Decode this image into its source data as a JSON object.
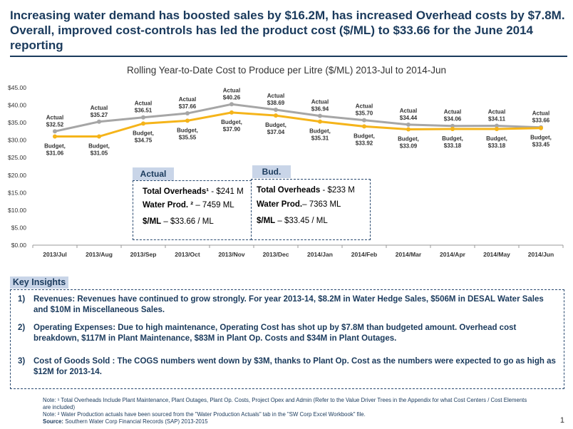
{
  "headline": "Increasing water demand has boosted sales by $16.2M, has increased Overhead costs by $7.8M. Overall, improved cost-controls has led the product cost ($/ML) to $33.66 for the June 2014 reporting",
  "chart_title": "Rolling Year-to-Date Cost to Produce per Litre ($/ML) 2013-Jul to 2014-Jun",
  "chart_data": {
    "type": "line",
    "categories": [
      "2013/Jul",
      "2013/Aug",
      "2013/Sep",
      "2013/Oct",
      "2013/Nov",
      "2013/Dec",
      "2014/Jan",
      "2014/Feb",
      "2014/Mar",
      "2014/Apr",
      "2014/May",
      "2014/Jun"
    ],
    "series": [
      {
        "name": "Actual",
        "values": [
          32.52,
          35.27,
          36.51,
          37.66,
          40.26,
          38.69,
          36.94,
          35.7,
          34.44,
          34.06,
          34.11,
          33.66
        ],
        "color": "#a6a6a6"
      },
      {
        "name": "Budget",
        "values": [
          31.06,
          31.05,
          34.75,
          35.55,
          37.9,
          37.04,
          35.31,
          33.92,
          33.09,
          33.18,
          33.18,
          33.45
        ],
        "color": "#f5b41a"
      }
    ],
    "actual_labels": [
      "$32.52",
      "$35.27",
      "$36.51",
      "$37.66",
      "$40.26",
      "$38.69",
      "$36.94",
      "$35.70",
      "$34.44",
      "$34.06",
      "$34.11",
      "$33.66"
    ],
    "budget_labels": [
      "$31.06",
      "$31.05",
      "$34.75",
      "$35.55",
      "$37.90",
      "$37.04",
      "$35.31",
      "$33.92",
      "$33.09",
      "$33.18",
      "$33.18",
      "$33.45"
    ],
    "actual_prefix": "Actual",
    "budget_prefix": "Budget,",
    "y_ticks": [
      "$0.00",
      "$5.00",
      "$10.00",
      "$15.00",
      "$20.00",
      "$25.00",
      "$30.00",
      "$35.00",
      "$40.00",
      "$45.00"
    ],
    "ylim": [
      0,
      45
    ],
    "grid": false
  },
  "actual_box": {
    "title": "Actual",
    "l1_label": "Total Overheads¹",
    "l1_value": " - $241 M",
    "l2_label": "Water Prod. ²",
    "l2_value": " – 7459 ML",
    "l3_label": "$/ML",
    "l3_value": " – $33.66 / ML"
  },
  "budget_box": {
    "title": "Bud.",
    "l1_label": "Total Overheads",
    "l1_value": " - $233 M",
    "l2_label": "Water Prod.",
    "l2_value": "– 7363 ML",
    "l3_label": "$/ML",
    "l3_value": " – $33.45 / ML"
  },
  "insights": {
    "title": "Key Insights",
    "items": [
      {
        "num": "1)",
        "text": "Revenues:  Revenues have continued to grow strongly.  For year 2013-14, $8.2M in Water Hedge Sales, $506M in DESAL Water Sales and $10M in Miscellaneous Sales."
      },
      {
        "num": "2)",
        "text": "Operating Expenses: Due to high maintenance, Operating Cost has shot up by $7.8M than budgeted amount. Overhead cost breakdown, $117M in Plant Maintenance, $83M in Plant Op. Costs and $34M in Plant Outages."
      },
      {
        "num": "3)",
        "text": "Cost of Goods Sold : The COGS numbers went down by $3M, thanks to Plant Op. Cost as the numbers were expected to go as high as $12M for 2013-14."
      }
    ]
  },
  "notes": {
    "n1": "Note: ¹ Total Overheads Include Plant Maintenance, Plant Outages, Plant Op. Costs, Project Opex and Admin (Refer to the Value Driver Trees in the Appendix for what Cost Centers / Cost Elements are included)",
    "n2": "Note: ² Water Production actuals have been sourced from the \"Water Production Actuals\" tab in the \"SW Corp Excel Workbook\" file.",
    "source_label": "Source:",
    "source_text": " Southern Water Corp Financial Records (SAP) 2013-2015"
  },
  "page_number": "1"
}
